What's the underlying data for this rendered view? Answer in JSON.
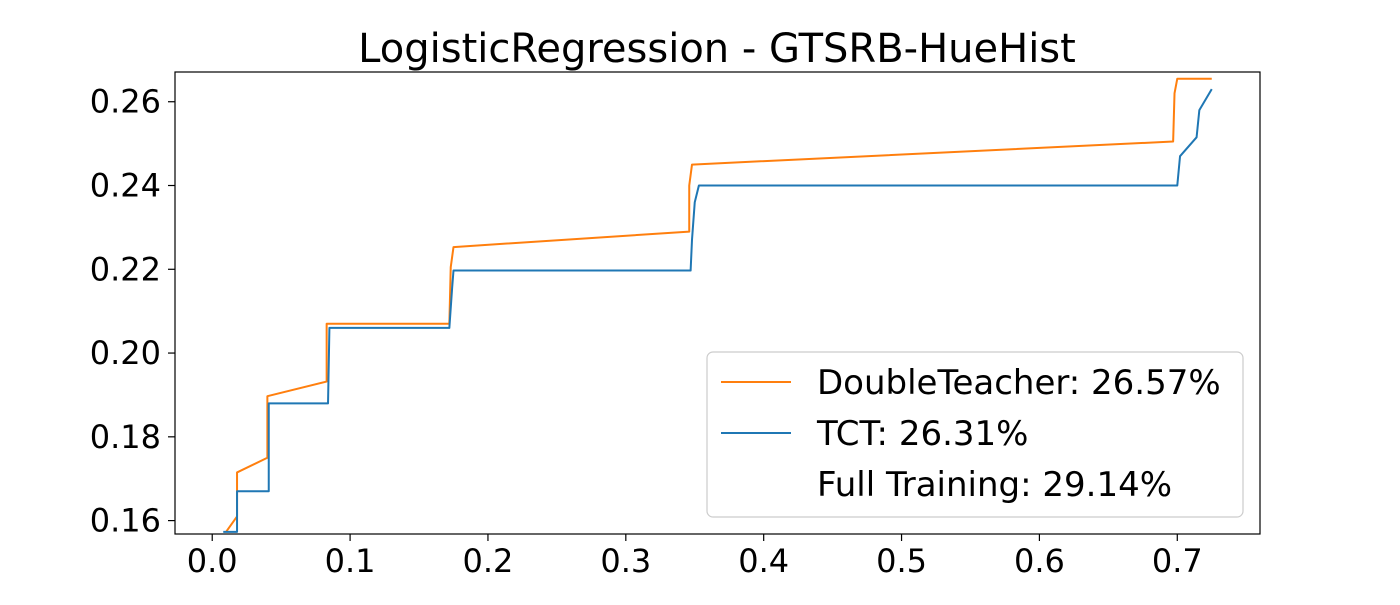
{
  "chart_data": {
    "type": "line",
    "title": "LogisticRegression - GTSRB-HueHist",
    "xlabel": "",
    "ylabel": "",
    "xlim": [
      -0.027,
      0.76
    ],
    "ylim": [
      0.1568,
      0.2671
    ],
    "xticks": [
      0.0,
      0.1,
      0.2,
      0.3,
      0.4,
      0.5,
      0.6,
      0.7
    ],
    "xtick_labels": [
      "0.0",
      "0.1",
      "0.2",
      "0.3",
      "0.4",
      "0.5",
      "0.6",
      "0.7"
    ],
    "yticks": [
      0.16,
      0.18,
      0.2,
      0.22,
      0.24,
      0.26
    ],
    "ytick_labels": [
      "0.16",
      "0.18",
      "0.20",
      "0.22",
      "0.24",
      "0.26"
    ],
    "grid": false,
    "legend_position": "lower-right",
    "series": [
      {
        "name": "DoubleTeacher: 26.57%",
        "color": "#ff7f0e",
        "points": [
          [
            0.01,
            0.1573
          ],
          [
            0.018,
            0.161
          ],
          [
            0.018,
            0.1715
          ],
          [
            0.04,
            0.175
          ],
          [
            0.04,
            0.1897
          ],
          [
            0.083,
            0.1932
          ],
          [
            0.083,
            0.207
          ],
          [
            0.172,
            0.207
          ],
          [
            0.173,
            0.2205
          ],
          [
            0.175,
            0.2253
          ],
          [
            0.346,
            0.229
          ],
          [
            0.346,
            0.24
          ],
          [
            0.348,
            0.245
          ],
          [
            0.697,
            0.2505
          ],
          [
            0.698,
            0.262
          ],
          [
            0.7,
            0.2655
          ],
          [
            0.725,
            0.2655
          ]
        ]
      },
      {
        "name": "TCT: 26.31%",
        "color": "#1f77b4",
        "points": [
          [
            0.008,
            0.1573
          ],
          [
            0.018,
            0.1573
          ],
          [
            0.018,
            0.167
          ],
          [
            0.041,
            0.167
          ],
          [
            0.041,
            0.188
          ],
          [
            0.084,
            0.188
          ],
          [
            0.085,
            0.206
          ],
          [
            0.172,
            0.206
          ],
          [
            0.174,
            0.2155
          ],
          [
            0.175,
            0.2197
          ],
          [
            0.347,
            0.2197
          ],
          [
            0.348,
            0.227
          ],
          [
            0.35,
            0.236
          ],
          [
            0.353,
            0.24
          ],
          [
            0.7,
            0.24
          ],
          [
            0.702,
            0.247
          ],
          [
            0.714,
            0.2515
          ],
          [
            0.716,
            0.258
          ],
          [
            0.725,
            0.263
          ]
        ]
      },
      {
        "name": "Full Training: 29.14%",
        "color": "#2ca02c",
        "points": []
      }
    ]
  }
}
